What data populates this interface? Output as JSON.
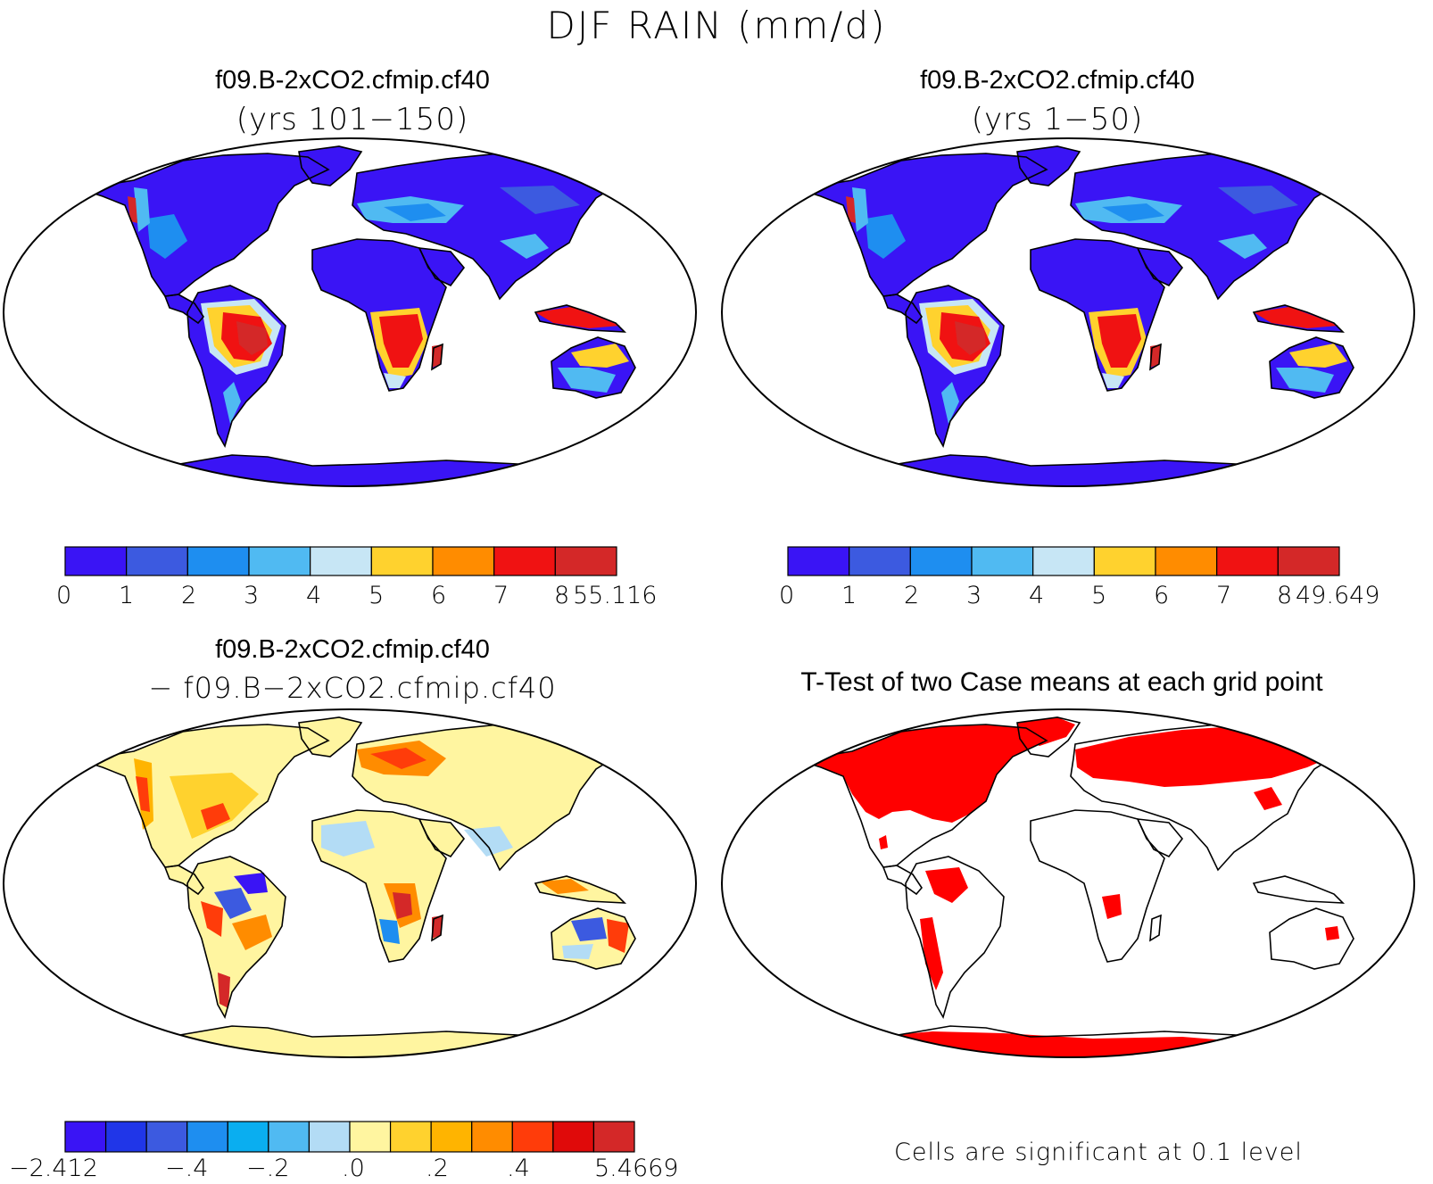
{
  "figure": {
    "title": "DJF RAIN (mm/d)"
  },
  "panels": [
    {
      "id": "top-left",
      "title_line1": "f09.B-2xCO2.cfmip.cf40",
      "title_line2": "(yrs 101−150)"
    },
    {
      "id": "top-right",
      "title_line1": "f09.B-2xCO2.cfmip.cf40",
      "title_line2": "(yrs 1−50)"
    },
    {
      "id": "bottom-left",
      "title_line1": "f09.B-2xCO2.cfmip.cf40",
      "title_line2": "− f09.B−2xCO2.cfmip.cf40"
    },
    {
      "id": "bottom-right",
      "title_line1": "T-Test of two Case means at each grid point",
      "note": "Cells are significant at 0.1 level"
    }
  ],
  "colorbars": {
    "rain_top_left": {
      "colors": [
        "#3a14f5",
        "#3c5ae0",
        "#1e8ef0",
        "#50baf2",
        "#c7e6f5",
        "#ffd22e",
        "#ff8c00",
        "#f01212",
        "#d42828"
      ],
      "labels": [
        "0",
        "1",
        "2",
        "3",
        "4",
        "5",
        "6",
        "7",
        "8",
        "55.116"
      ]
    },
    "rain_top_right": {
      "colors": [
        "#3a14f5",
        "#3c5ae0",
        "#1e8ef0",
        "#50baf2",
        "#c7e6f5",
        "#ffd22e",
        "#ff8c00",
        "#f01212",
        "#d42828"
      ],
      "labels": [
        "0",
        "1",
        "2",
        "3",
        "4",
        "5",
        "6",
        "7",
        "8",
        "49.649"
      ]
    },
    "diff": {
      "colors": [
        "#3a14f5",
        "#2036e8",
        "#3c5ae0",
        "#1e8ef0",
        "#0aaef0",
        "#50baf2",
        "#b3dcf5",
        "#fff5a0",
        "#ffd22e",
        "#ffb400",
        "#ff8c00",
        "#ff3c0a",
        "#e00a0a",
        "#d42828"
      ],
      "labels": [
        "−2.412",
        "−.4",
        "−.2",
        ".0",
        ".2",
        ".4",
        "5.4669"
      ]
    }
  },
  "map_style": {
    "ocean": "#ffffff",
    "outline": "#000000",
    "significant": "#ff0000"
  }
}
